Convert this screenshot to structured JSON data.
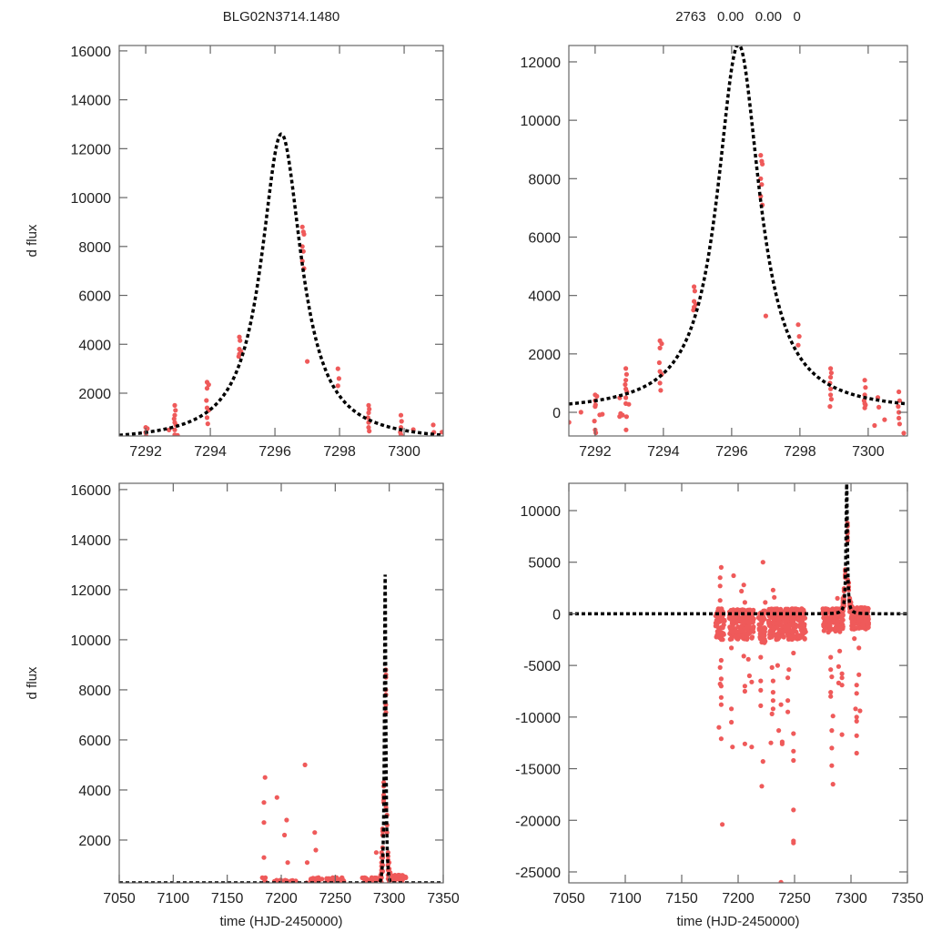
{
  "chart_data": {
    "type": "scatter",
    "titles": [
      "BLG02N3714.1480",
      "2763   0.00   0.00   0"
    ],
    "ylabel": "d flux",
    "xlabel": "time (HJD-2450000)",
    "point_color": "#ef5a5a",
    "model_color": "#000000",
    "model": {
      "type": "microlensing-peak",
      "t0": 7296.2,
      "peak": 12600,
      "width_days": 0.756,
      "baseline": 0
    },
    "panels": [
      {
        "id": "top-left",
        "xlim": [
          7291.18,
          7301.21
        ],
        "ylim": [
          250,
          16220
        ],
        "xticks": [
          7292,
          7294,
          7296,
          7298,
          7300
        ],
        "yticks": [
          2000,
          4000,
          6000,
          8000,
          10000,
          12000,
          14000,
          16000
        ],
        "show_ylabel": true,
        "show_xlabel": false
      },
      {
        "id": "top-right",
        "xlim": [
          7291.23,
          7301.15
        ],
        "ylim": [
          -810,
          12560
        ],
        "xticks": [
          7292,
          7294,
          7296,
          7298,
          7300
        ],
        "yticks": [
          0,
          2000,
          4000,
          6000,
          8000,
          10000,
          12000
        ],
        "show_ylabel": false,
        "show_xlabel": false
      },
      {
        "id": "bottom-left",
        "xlim": [
          7050,
          7350
        ],
        "ylim": [
          290,
          16250
        ],
        "xticks": [
          7050,
          7100,
          7150,
          7200,
          7250,
          7300,
          7350
        ],
        "yticks": [
          2000,
          4000,
          6000,
          8000,
          10000,
          12000,
          14000,
          16000
        ],
        "show_ylabel": true,
        "show_xlabel": true
      },
      {
        "id": "bottom-right",
        "xlim": [
          7050,
          7350
        ],
        "ylim": [
          -26060,
          12645
        ],
        "xticks": [
          7050,
          7100,
          7150,
          7200,
          7250,
          7300,
          7350
        ],
        "yticks": [
          -25000,
          -20000,
          -15000,
          -10000,
          -5000,
          0,
          5000,
          10000
        ],
        "show_ylabel": false,
        "show_xlabel": true
      }
    ],
    "peak_points": [
      [
        7292.0,
        600
      ],
      [
        7292.05,
        550
      ],
      [
        7292.0,
        400
      ],
      [
        7292.0,
        200
      ],
      [
        7291.98,
        -300
      ],
      [
        7292.0,
        -600
      ],
      [
        7292.02,
        -700
      ],
      [
        7292.9,
        1500
      ],
      [
        7292.92,
        1300
      ],
      [
        7292.9,
        1100
      ],
      [
        7292.88,
        950
      ],
      [
        7292.9,
        800
      ],
      [
        7292.93,
        700
      ],
      [
        7292.9,
        500
      ],
      [
        7292.9,
        300
      ],
      [
        7292.92,
        -150
      ],
      [
        7293.9,
        2450
      ],
      [
        7293.95,
        2350
      ],
      [
        7293.9,
        2200
      ],
      [
        7293.88,
        1700
      ],
      [
        7293.9,
        1400
      ],
      [
        7293.95,
        1300
      ],
      [
        7293.9,
        1000
      ],
      [
        7293.92,
        750
      ],
      [
        7294.9,
        4300
      ],
      [
        7294.92,
        4150
      ],
      [
        7294.9,
        3800
      ],
      [
        7294.95,
        3700
      ],
      [
        7294.9,
        3600
      ],
      [
        7294.88,
        3500
      ],
      [
        7296.85,
        8800
      ],
      [
        7296.88,
        8600
      ],
      [
        7296.9,
        8500
      ],
      [
        7296.85,
        8000
      ],
      [
        7296.88,
        7800
      ],
      [
        7296.85,
        7400
      ],
      [
        7296.9,
        7100
      ],
      [
        7297.0,
        3300
      ],
      [
        7297.95,
        3000
      ],
      [
        7297.98,
        2600
      ],
      [
        7297.95,
        2300
      ],
      [
        7298.9,
        1500
      ],
      [
        7298.92,
        1350
      ],
      [
        7298.9,
        1200
      ],
      [
        7298.88,
        1000
      ],
      [
        7298.9,
        800
      ],
      [
        7298.9,
        600
      ],
      [
        7298.92,
        450
      ],
      [
        7298.88,
        200
      ],
      [
        7299.9,
        1100
      ],
      [
        7299.92,
        850
      ],
      [
        7299.9,
        600
      ],
      [
        7299.88,
        400
      ],
      [
        7299.9,
        300
      ],
      [
        7299.92,
        250
      ],
      [
        7299.9,
        150
      ],
      [
        7300.9,
        700
      ],
      [
        7300.92,
        400
      ],
      [
        7300.88,
        200
      ],
      [
        7300.9,
        0
      ],
      [
        7300.9,
        -200
      ],
      [
        7300.92,
        -400
      ]
    ],
    "outlier_points": [
      [
        7185,
        4500
      ],
      [
        7184,
        3500
      ],
      [
        7184,
        2700
      ],
      [
        7184,
        1300
      ],
      [
        7185,
        -4500
      ],
      [
        7184,
        -5200
      ],
      [
        7185,
        -6300
      ],
      [
        7184,
        -6800
      ],
      [
        7185,
        -7000
      ],
      [
        7185,
        -8100
      ],
      [
        7185,
        -8800
      ],
      [
        7183,
        -11000
      ],
      [
        7185,
        -12100
      ],
      [
        7186,
        -20400
      ],
      [
        7196,
        3700
      ],
      [
        7194,
        -3300
      ],
      [
        7194,
        -9200
      ],
      [
        7194,
        -10500
      ],
      [
        7195,
        -12900
      ],
      [
        7205,
        2800
      ],
      [
        7203,
        2200
      ],
      [
        7206,
        1100
      ],
      [
        7205,
        -4100
      ],
      [
        7206,
        -7000
      ],
      [
        7206,
        -7500
      ],
      [
        7206,
        -12600
      ],
      [
        7209,
        -4400
      ],
      [
        7210,
        -6000
      ],
      [
        7212,
        -6600
      ],
      [
        7212,
        -12900
      ],
      [
        7222,
        5000
      ],
      [
        7224,
        1100
      ],
      [
        7220,
        -4200
      ],
      [
        7220,
        -6500
      ],
      [
        7220,
        -7400
      ],
      [
        7220,
        -8900
      ],
      [
        7222,
        -14300
      ],
      [
        7221,
        -16700
      ],
      [
        7231,
        2300
      ],
      [
        7232,
        1600
      ],
      [
        7230,
        -5200
      ],
      [
        7231,
        -6500
      ],
      [
        7231,
        -7600
      ],
      [
        7231,
        -8400
      ],
      [
        7231,
        -9200
      ],
      [
        7230,
        -9700
      ],
      [
        7229,
        -12500
      ],
      [
        7235,
        -5000
      ],
      [
        7238,
        -8800
      ],
      [
        7236,
        -11300
      ],
      [
        7239,
        -12400
      ],
      [
        7239,
        -12600
      ],
      [
        7238,
        -26000
      ],
      [
        7245,
        -5400
      ],
      [
        7244,
        -6200
      ],
      [
        7244,
        -8400
      ],
      [
        7244,
        -9500
      ],
      [
        7249,
        -3800
      ],
      [
        7249,
        -11600
      ],
      [
        7249,
        -13300
      ],
      [
        7249,
        -14200
      ],
      [
        7249,
        -19000
      ],
      [
        7249,
        -22000
      ],
      [
        7249,
        -22200
      ],
      [
        7288,
        1500
      ],
      [
        7282,
        -4200
      ],
      [
        7282,
        -5400
      ],
      [
        7283,
        -6100
      ],
      [
        7282,
        -7600
      ],
      [
        7282,
        -8000
      ],
      [
        7284,
        -9900
      ],
      [
        7283,
        -11300
      ],
      [
        7283,
        -13000
      ],
      [
        7283,
        -14700
      ],
      [
        7284,
        -16500
      ],
      [
        7290,
        -3600
      ],
      [
        7289,
        -5100
      ],
      [
        7289,
        -6700
      ],
      [
        7292,
        -5800
      ],
      [
        7292,
        -6200
      ],
      [
        7292,
        -6900
      ],
      [
        7292,
        -11700
      ],
      [
        7303,
        -2400
      ],
      [
        7305,
        -6900
      ],
      [
        7305,
        -7700
      ],
      [
        7304,
        -9200
      ],
      [
        7305,
        -10000
      ],
      [
        7305,
        -10400
      ],
      [
        7305,
        -11800
      ],
      [
        7305,
        -13500
      ],
      [
        7307,
        -3300
      ],
      [
        7307,
        -5900
      ],
      [
        7308,
        -9400
      ]
    ],
    "baseline_band_segments": [
      {
        "t": [
          7180,
          7188
        ],
        "flux": [
          -2500,
          500
        ]
      },
      {
        "t": [
          7192,
          7214
        ],
        "flux": [
          -2500,
          400
        ]
      },
      {
        "t": [
          7218,
          7224
        ],
        "flux": [
          -2800,
          300
        ]
      },
      {
        "t": [
          7227,
          7260
        ],
        "flux": [
          -2600,
          500
        ]
      },
      {
        "t": [
          7275,
          7293
        ],
        "flux": [
          -1800,
          500
        ]
      },
      {
        "t": [
          7300,
          7316
        ],
        "flux": [
          -1500,
          600
        ]
      }
    ]
  }
}
